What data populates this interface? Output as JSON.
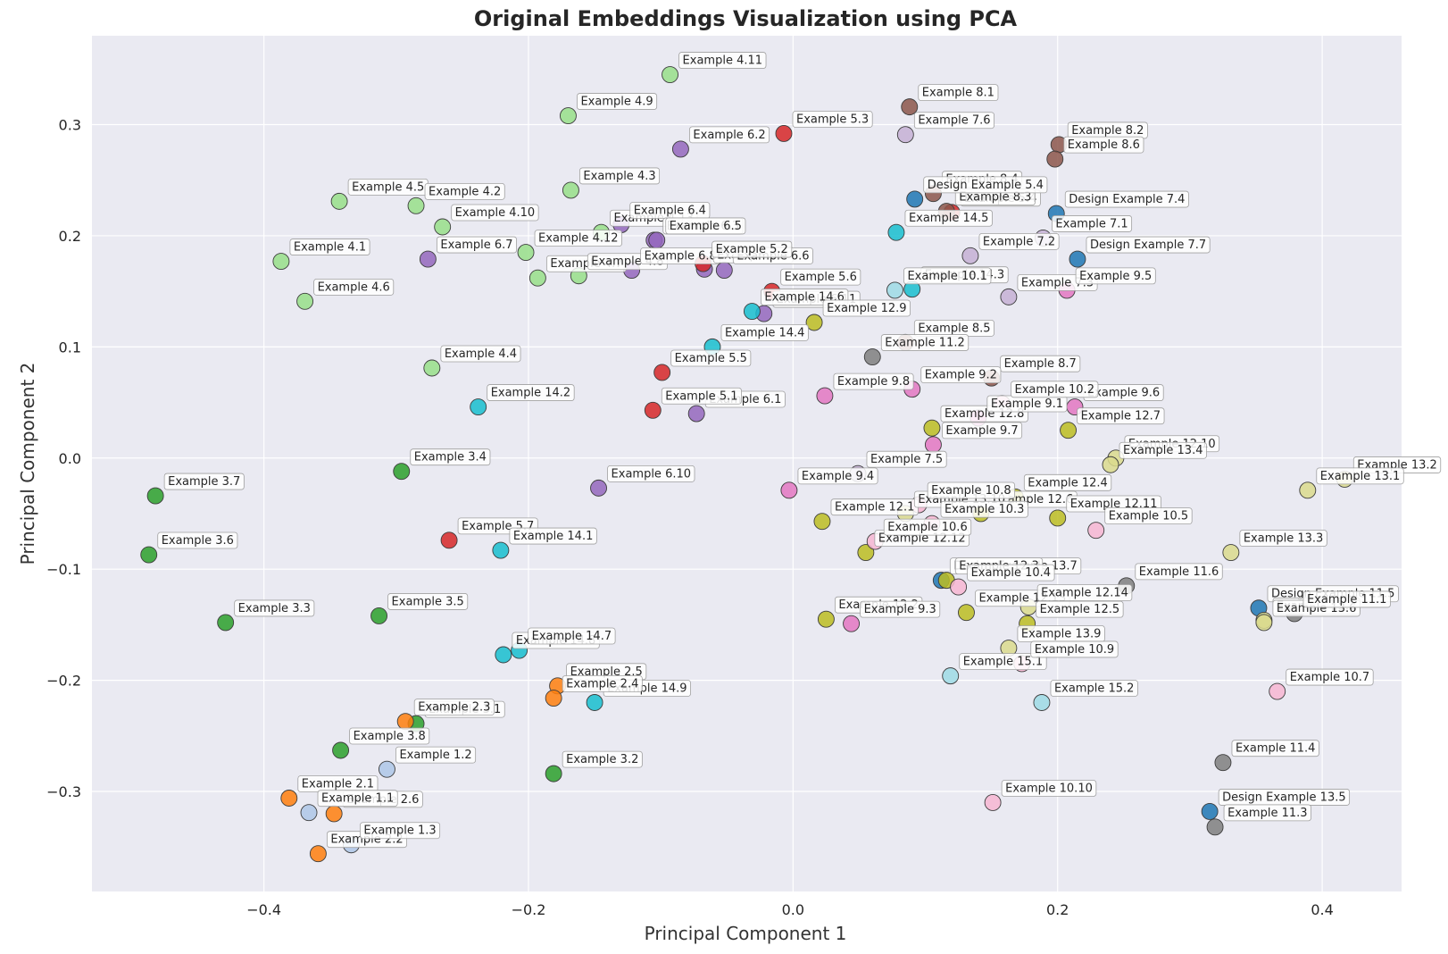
{
  "chart_data": {
    "type": "scatter",
    "title": "Original Embeddings Visualization using PCA",
    "xlabel": "Principal Component 1",
    "ylabel": "Principal Component 2",
    "xlim": [
      -0.53,
      0.46
    ],
    "ylim": [
      -0.39,
      0.38
    ],
    "xticks": [
      -0.4,
      -0.2,
      0.0,
      0.2,
      0.4
    ],
    "xtick_labels": [
      "−0.4",
      "−0.2",
      "0.0",
      "0.2",
      "0.4"
    ],
    "yticks": [
      -0.3,
      -0.2,
      -0.1,
      0.0,
      0.1,
      0.2,
      0.3
    ],
    "ytick_labels": [
      "−0.3",
      "−0.2",
      "−0.1",
      "0.0",
      "0.1",
      "0.2",
      "0.3"
    ],
    "grid": true,
    "background": "#eaeaf2",
    "colors": {
      "g1": "#aec7e8",
      "g2": "#ff7f0e",
      "g3": "#2ca02c",
      "g4": "#98df8a",
      "g5": "#d62728",
      "g6": "#9467bd",
      "g7": "#c5b0d5",
      "g8": "#8c564b",
      "g9": "#e377c2",
      "g10": "#f7b6d2",
      "g11": "#7f7f7f",
      "g12": "#bcbd22",
      "g13": "#dbdb8d",
      "g14": "#17becf",
      "g15": "#9edae5",
      "gD": "#1f77b4"
    },
    "points": [
      {
        "label": "Example 4.11",
        "x": -0.093,
        "y": 0.345,
        "g": "g4"
      },
      {
        "label": "Example 4.9",
        "x": -0.17,
        "y": 0.308,
        "g": "g4"
      },
      {
        "label": "Example 4.3",
        "x": -0.168,
        "y": 0.241,
        "g": "g4"
      },
      {
        "label": "Example 4.5",
        "x": -0.343,
        "y": 0.231,
        "g": "g4"
      },
      {
        "label": "Example 4.2",
        "x": -0.285,
        "y": 0.227,
        "g": "g4"
      },
      {
        "label": "Example 4.10",
        "x": -0.265,
        "y": 0.208,
        "g": "g4"
      },
      {
        "label": "Example 4.12",
        "x": -0.202,
        "y": 0.185,
        "g": "g4"
      },
      {
        "label": "Example 4.1",
        "x": -0.387,
        "y": 0.177,
        "g": "g4"
      },
      {
        "label": "Example 4.6",
        "x": -0.369,
        "y": 0.141,
        "g": "g4"
      },
      {
        "label": "Example 4.4",
        "x": -0.273,
        "y": 0.081,
        "g": "g4"
      },
      {
        "label": "Example 4.7",
        "x": -0.193,
        "y": 0.162,
        "g": "g4"
      },
      {
        "label": "Example 4.8",
        "x": -0.162,
        "y": 0.164,
        "g": "g4"
      },
      {
        "label": "Example 4.13",
        "x": -0.145,
        "y": 0.203,
        "g": "g4"
      },
      {
        "label": "Example 6.2",
        "x": -0.085,
        "y": 0.278,
        "g": "g6"
      },
      {
        "label": "Example 6.4",
        "x": -0.13,
        "y": 0.21,
        "g": "g6"
      },
      {
        "label": "Example 6.3",
        "x": -0.105,
        "y": 0.196,
        "g": "g6"
      },
      {
        "label": "Example 6.5",
        "x": -0.103,
        "y": 0.196,
        "g": "g6"
      },
      {
        "label": "Example 6.7",
        "x": -0.276,
        "y": 0.179,
        "g": "g6"
      },
      {
        "label": "Example 6.8",
        "x": -0.122,
        "y": 0.169,
        "g": "g6"
      },
      {
        "label": "Example 6.9",
        "x": -0.067,
        "y": 0.17,
        "g": "g6"
      },
      {
        "label": "Example 6.6",
        "x": -0.052,
        "y": 0.169,
        "g": "g6"
      },
      {
        "label": "Example 6.1",
        "x": -0.073,
        "y": 0.04,
        "g": "g6"
      },
      {
        "label": "Example 6.10",
        "x": -0.147,
        "y": -0.027,
        "g": "g6"
      },
      {
        "label": "Example 6.11",
        "x": -0.022,
        "y": 0.13,
        "g": "g6"
      },
      {
        "label": "Example 5.3",
        "x": -0.007,
        "y": 0.292,
        "g": "g5"
      },
      {
        "label": "Example 5.2",
        "x": -0.068,
        "y": 0.175,
        "g": "g5"
      },
      {
        "label": "Example 5.6",
        "x": -0.016,
        "y": 0.15,
        "g": "g5"
      },
      {
        "label": "Example 5.5",
        "x": -0.099,
        "y": 0.077,
        "g": "g5"
      },
      {
        "label": "Example 5.1",
        "x": -0.106,
        "y": 0.043,
        "g": "g5"
      },
      {
        "label": "Example 5.7",
        "x": -0.26,
        "y": -0.074,
        "g": "g5"
      },
      {
        "label": "Example 5.4",
        "x": 0.12,
        "y": 0.221,
        "g": "g5"
      },
      {
        "label": "Example 8.1",
        "x": 0.088,
        "y": 0.316,
        "g": "g8"
      },
      {
        "label": "Example 8.2",
        "x": 0.201,
        "y": 0.282,
        "g": "g8"
      },
      {
        "label": "Example 8.6",
        "x": 0.198,
        "y": 0.269,
        "g": "g8"
      },
      {
        "label": "Example 8.4",
        "x": 0.106,
        "y": 0.238,
        "g": "g8"
      },
      {
        "label": "Example 8.3",
        "x": 0.116,
        "y": 0.222,
        "g": "g8"
      },
      {
        "label": "Example 8.5",
        "x": 0.085,
        "y": 0.104,
        "g": "g8"
      },
      {
        "label": "Example 8.7",
        "x": 0.15,
        "y": 0.072,
        "g": "g8"
      },
      {
        "label": "Example 7.6",
        "x": 0.085,
        "y": 0.291,
        "g": "g7"
      },
      {
        "label": "Example 7.1",
        "x": 0.189,
        "y": 0.198,
        "g": "g7"
      },
      {
        "label": "Example 7.2",
        "x": 0.134,
        "y": 0.182,
        "g": "g7"
      },
      {
        "label": "Example 7.3",
        "x": 0.163,
        "y": 0.145,
        "g": "g7"
      },
      {
        "label": "Example 7.5",
        "x": 0.049,
        "y": -0.014,
        "g": "g7"
      },
      {
        "label": "Design Example 5.4",
        "x": 0.092,
        "y": 0.233,
        "g": "gD"
      },
      {
        "label": "Design Example 7.4",
        "x": 0.199,
        "y": 0.22,
        "g": "gD"
      },
      {
        "label": "Design Example 7.7",
        "x": 0.215,
        "y": 0.179,
        "g": "gD"
      },
      {
        "label": "Design Example 11.5",
        "x": 0.352,
        "y": -0.135,
        "g": "gD"
      },
      {
        "label": "Design Example 13.7",
        "x": 0.112,
        "y": -0.11,
        "g": "gD"
      },
      {
        "label": "Design Example 13.5",
        "x": 0.315,
        "y": -0.318,
        "g": "gD"
      },
      {
        "label": "Example 14.5",
        "x": 0.078,
        "y": 0.203,
        "g": "g14"
      },
      {
        "label": "Example 14.3",
        "x": 0.09,
        "y": 0.152,
        "g": "g14"
      },
      {
        "label": "Example 14.6",
        "x": -0.031,
        "y": 0.132,
        "g": "g14"
      },
      {
        "label": "Example 14.4",
        "x": -0.061,
        "y": 0.1,
        "g": "g14"
      },
      {
        "label": "Example 14.2",
        "x": -0.238,
        "y": 0.046,
        "g": "g14"
      },
      {
        "label": "Example 14.1",
        "x": -0.221,
        "y": -0.083,
        "g": "g14"
      },
      {
        "label": "Example 14.8",
        "x": -0.219,
        "y": -0.177,
        "g": "g14"
      },
      {
        "label": "Example 14.7",
        "x": -0.207,
        "y": -0.173,
        "g": "g14"
      },
      {
        "label": "Example 14.9",
        "x": -0.15,
        "y": -0.22,
        "g": "g14"
      },
      {
        "label": "Example 10.1",
        "x": 0.077,
        "y": 0.151,
        "g": "g15"
      },
      {
        "label": "Example 15.1",
        "x": 0.119,
        "y": -0.196,
        "g": "g15"
      },
      {
        "label": "Example 15.2",
        "x": 0.188,
        "y": -0.22,
        "g": "g15"
      },
      {
        "label": "Example 12.9",
        "x": 0.016,
        "y": 0.122,
        "g": "g12"
      },
      {
        "label": "Example 12.8",
        "x": 0.105,
        "y": 0.027,
        "g": "g12"
      },
      {
        "label": "Example 12.7",
        "x": 0.208,
        "y": 0.025,
        "g": "g12"
      },
      {
        "label": "Example 12.4",
        "x": 0.168,
        "y": -0.035,
        "g": "g12"
      },
      {
        "label": "Example 12.6",
        "x": 0.142,
        "y": -0.05,
        "g": "g12"
      },
      {
        "label": "Example 12.11",
        "x": 0.2,
        "y": -0.054,
        "g": "g12"
      },
      {
        "label": "Example 12.1",
        "x": 0.022,
        "y": -0.057,
        "g": "g12"
      },
      {
        "label": "Example 12.12",
        "x": 0.055,
        "y": -0.085,
        "g": "g12"
      },
      {
        "label": "Example 12.3",
        "x": 0.116,
        "y": -0.11,
        "g": "g12"
      },
      {
        "label": "Example 12.13",
        "x": 0.131,
        "y": -0.139,
        "g": "g12"
      },
      {
        "label": "Example 12.5",
        "x": 0.177,
        "y": -0.149,
        "g": "g12"
      },
      {
        "label": "Example 12.2",
        "x": 0.025,
        "y": -0.145,
        "g": "g12"
      },
      {
        "label": "Example 12.10",
        "x": 0.244,
        "y": 0.0,
        "g": "g13"
      },
      {
        "label": "Example 13.4",
        "x": 0.24,
        "y": -0.006,
        "g": "g13"
      },
      {
        "label": "Example 13.2",
        "x": 0.417,
        "y": -0.019,
        "g": "g13"
      },
      {
        "label": "Example 13.1",
        "x": 0.389,
        "y": -0.029,
        "g": "g13"
      },
      {
        "label": "Example 13.3",
        "x": 0.331,
        "y": -0.085,
        "g": "g13"
      },
      {
        "label": "Example 12.14",
        "x": 0.178,
        "y": -0.134,
        "g": "g13"
      },
      {
        "label": "Example 13.8",
        "x": 0.356,
        "y": -0.146,
        "g": "g13"
      },
      {
        "label": "Example 13.6",
        "x": 0.356,
        "y": -0.148,
        "g": "g13"
      },
      {
        "label": "Example 13.9",
        "x": 0.163,
        "y": -0.171,
        "g": "g13"
      },
      {
        "label": "Example 13.10",
        "x": 0.085,
        "y": -0.05,
        "g": "g13"
      },
      {
        "label": "Example 11.2",
        "x": 0.06,
        "y": 0.091,
        "g": "g11"
      },
      {
        "label": "Example 11.6",
        "x": 0.252,
        "y": -0.115,
        "g": "g11"
      },
      {
        "label": "Example 11.1",
        "x": 0.379,
        "y": -0.14,
        "g": "g11"
      },
      {
        "label": "Example 11.4",
        "x": 0.325,
        "y": -0.274,
        "g": "g11"
      },
      {
        "label": "Example 11.3",
        "x": 0.319,
        "y": -0.332,
        "g": "g11"
      },
      {
        "label": "Example 9.5",
        "x": 0.207,
        "y": 0.151,
        "g": "g9"
      },
      {
        "label": "Example 9.8",
        "x": 0.024,
        "y": 0.056,
        "g": "g9"
      },
      {
        "label": "Example 9.2",
        "x": 0.09,
        "y": 0.062,
        "g": "g9"
      },
      {
        "label": "Example 9.6",
        "x": 0.213,
        "y": 0.046,
        "g": "g9"
      },
      {
        "label": "Example 9.1",
        "x": 0.14,
        "y": 0.036,
        "g": "g9"
      },
      {
        "label": "Example 9.7",
        "x": 0.106,
        "y": 0.012,
        "g": "g9"
      },
      {
        "label": "Example 9.4",
        "x": -0.003,
        "y": -0.029,
        "g": "g9"
      },
      {
        "label": "Example 9.3",
        "x": 0.044,
        "y": -0.149,
        "g": "g9"
      },
      {
        "label": "Example 10.2",
        "x": 0.158,
        "y": 0.049,
        "g": "g10"
      },
      {
        "label": "Example 10.8",
        "x": 0.095,
        "y": -0.042,
        "g": "g10"
      },
      {
        "label": "Example 10.3",
        "x": 0.105,
        "y": -0.059,
        "g": "g10"
      },
      {
        "label": "Example 10.6",
        "x": 0.062,
        "y": -0.075,
        "g": "g10"
      },
      {
        "label": "Example 10.5",
        "x": 0.229,
        "y": -0.065,
        "g": "g10"
      },
      {
        "label": "Example 10.4",
        "x": 0.125,
        "y": -0.116,
        "g": "g10"
      },
      {
        "label": "Example 10.9",
        "x": 0.173,
        "y": -0.185,
        "g": "g10"
      },
      {
        "label": "Example 10.7",
        "x": 0.366,
        "y": -0.21,
        "g": "g10"
      },
      {
        "label": "Example 10.10",
        "x": 0.151,
        "y": -0.31,
        "g": "g10"
      },
      {
        "label": "Example 3.7",
        "x": -0.482,
        "y": -0.034,
        "g": "g3"
      },
      {
        "label": "Example 3.6",
        "x": -0.487,
        "y": -0.087,
        "g": "g3"
      },
      {
        "label": "Example 3.4",
        "x": -0.296,
        "y": -0.012,
        "g": "g3"
      },
      {
        "label": "Example 3.3",
        "x": -0.429,
        "y": -0.148,
        "g": "g3"
      },
      {
        "label": "Example 3.5",
        "x": -0.313,
        "y": -0.142,
        "g": "g3"
      },
      {
        "label": "Example 3.1",
        "x": -0.285,
        "y": -0.239,
        "g": "g3"
      },
      {
        "label": "Example 3.8",
        "x": -0.342,
        "y": -0.263,
        "g": "g3"
      },
      {
        "label": "Example 3.2",
        "x": -0.181,
        "y": -0.284,
        "g": "g3"
      },
      {
        "label": "Example 2.5",
        "x": -0.178,
        "y": -0.205,
        "g": "g2"
      },
      {
        "label": "Example 2.4",
        "x": -0.181,
        "y": -0.216,
        "g": "g2"
      },
      {
        "label": "Example 2.3",
        "x": -0.293,
        "y": -0.237,
        "g": "g2"
      },
      {
        "label": "Example 2.1",
        "x": -0.381,
        "y": -0.306,
        "g": "g2"
      },
      {
        "label": "Example 2.6",
        "x": -0.347,
        "y": -0.32,
        "g": "g2"
      },
      {
        "label": "Example 2.2",
        "x": -0.359,
        "y": -0.356,
        "g": "g2"
      },
      {
        "label": "Example 1.2",
        "x": -0.307,
        "y": -0.28,
        "g": "g1"
      },
      {
        "label": "Example 1.1",
        "x": -0.366,
        "y": -0.319,
        "g": "g1"
      },
      {
        "label": "Example 1.3",
        "x": -0.334,
        "y": -0.348,
        "g": "g1"
      }
    ]
  }
}
